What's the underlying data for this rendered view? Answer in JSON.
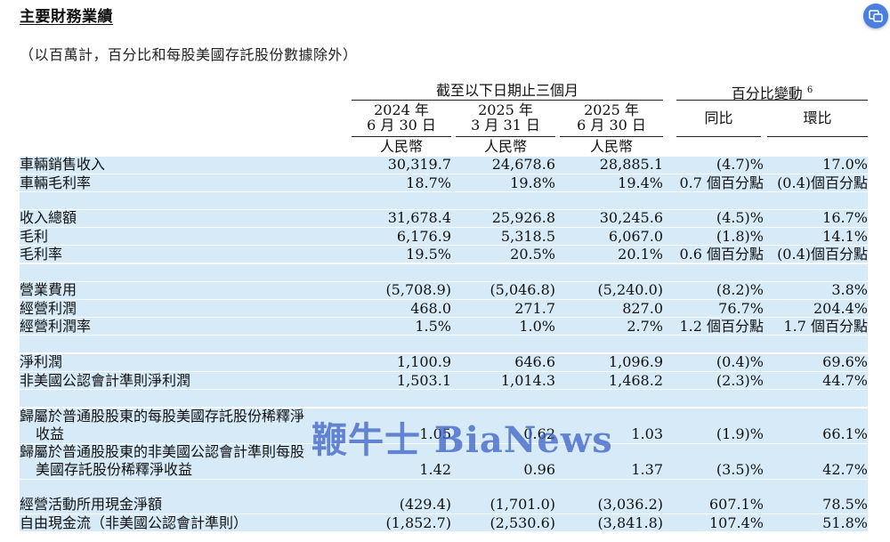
{
  "title": "主要財務業績",
  "subtitle": "（以百萬計，百分比和每股美國存託股份數據除外）",
  "watermark": "鞭牛士 BiaNews",
  "header": {
    "group_left": "截至以下日期止三個月",
    "group_right": "百分比變動",
    "group_right_note": "6",
    "periods": [
      {
        "line1": "2024 年",
        "line2": "6 月 30 日",
        "currency": "人民幣"
      },
      {
        "line1": "2025 年",
        "line2": "3 月 31 日",
        "currency": "人民幣"
      },
      {
        "line1": "2025 年",
        "line2": "6 月 30 日",
        "currency": "人民幣"
      }
    ],
    "yoy": "同比",
    "qoq": "環比"
  },
  "rows": [
    {
      "label": "車輛銷售收入",
      "v1": "30,319.7",
      "v2": "24,678.6",
      "v3": "28,885.1",
      "yoy": "(4.7)%",
      "qoq": "17.0%"
    },
    {
      "label": "車輛毛利率",
      "v1": "18.7%",
      "v2": "19.8%",
      "v3": "19.4%",
      "yoy": "0.7 個百分點",
      "qoq": "(0.4)個百分點"
    },
    {
      "label": "收入總額",
      "v1": "31,678.4",
      "v2": "25,926.8",
      "v3": "30,245.6",
      "yoy": "(4.5)%",
      "qoq": "16.7%"
    },
    {
      "label": "毛利",
      "v1": "6,176.9",
      "v2": "5,318.5",
      "v3": "6,067.0",
      "yoy": "(1.8)%",
      "qoq": "14.1%"
    },
    {
      "label": "毛利率",
      "v1": "19.5%",
      "v2": "20.5%",
      "v3": "20.1%",
      "yoy": "0.6 個百分點",
      "qoq": "(0.4)個百分點"
    },
    {
      "label": "營業費用",
      "v1": "(5,708.9)",
      "v2": "(5,046.8)",
      "v3": "(5,240.0)",
      "yoy": "(8.2)%",
      "qoq": "3.8%"
    },
    {
      "label": "經營利潤",
      "v1": "468.0",
      "v2": "271.7",
      "v3": "827.0",
      "yoy": "76.7%",
      "qoq": "204.4%"
    },
    {
      "label": "經營利潤率",
      "v1": "1.5%",
      "v2": "1.0%",
      "v3": "2.7%",
      "yoy": "1.2 個百分點",
      "qoq": "1.7 個百分點"
    },
    {
      "label": "淨利潤",
      "v1": "1,100.9",
      "v2": "646.6",
      "v3": "1,096.9",
      "yoy": "(0.4)%",
      "qoq": "69.6%"
    },
    {
      "label": "非美國公認會計準則淨利潤",
      "v1": "1,503.1",
      "v2": "1,014.3",
      "v3": "1,468.2",
      "yoy": "(2.3)%",
      "qoq": "44.7%"
    },
    {
      "label": "歸屬於普通股股東的每股美國存託股份稀釋淨",
      "label2": "收益",
      "v1": "1.05",
      "v2": "0.62",
      "v3": "1.03",
      "yoy": "(1.9)%",
      "qoq": "66.1%"
    },
    {
      "label": "歸屬於普通股股東的非美國公認會計準則每股",
      "label2": "美國存託股份稀釋淨收益",
      "v1": "1.42",
      "v2": "0.96",
      "v3": "1.37",
      "yoy": "(3.5)%",
      "qoq": "42.7%"
    },
    {
      "label": "經營活動所用現金淨額",
      "v1": "(429.4)",
      "v2": "(1,701.0)",
      "v3": "(3,036.2)",
      "yoy": "607.1%",
      "qoq": "78.5%"
    },
    {
      "label": "自由現金流（非美國公認會計準則）",
      "v1": "(1,852.7)",
      "v2": "(2,530.6)",
      "v3": "(3,841.8)",
      "yoy": "107.4%",
      "qoq": "51.8%"
    }
  ]
}
